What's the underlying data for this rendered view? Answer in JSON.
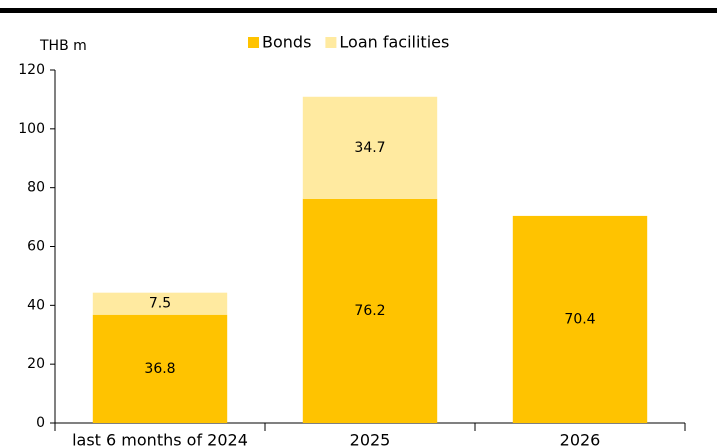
{
  "chart_data": {
    "type": "bar",
    "stacked": true,
    "y_label": "THB m",
    "categories": [
      "last 6 months of 2024",
      "2025",
      "2026"
    ],
    "series": [
      {
        "name": "Bonds",
        "color": "#ffc300",
        "values": [
          36.8,
          76.2,
          70.4
        ]
      },
      {
        "name": "Loan facilities",
        "color": "#ffeaa0",
        "values": [
          7.5,
          34.7,
          null
        ]
      }
    ],
    "ylim": [
      0,
      120
    ],
    "yticks": [
      0,
      20,
      40,
      60,
      80,
      100,
      120
    ],
    "grid": false,
    "legend": "top"
  }
}
